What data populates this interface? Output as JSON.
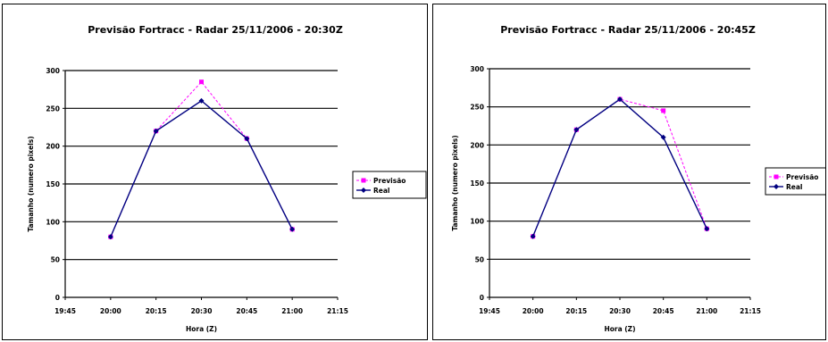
{
  "chart_data": [
    {
      "type": "line",
      "title": "Previsão Fortracc - Radar 25/11/2006 - 20:30Z",
      "xlabel": "Hora (Z)",
      "ylabel": "Tamanho (numero pixels)",
      "x_ticks": [
        "19:45",
        "20:00",
        "20:15",
        "20:30",
        "20:45",
        "21:00",
        "21:15"
      ],
      "y_ticks": [
        0,
        50,
        100,
        150,
        200,
        250,
        300
      ],
      "ylim": [
        0,
        300
      ],
      "grid": true,
      "legend": "right",
      "series": [
        {
          "name": "Previsão",
          "color": "#ff00ff",
          "dashed": true,
          "marker": "square",
          "x": [
            "20:00",
            "20:15",
            "20:30",
            "20:45",
            "21:00"
          ],
          "values": [
            80,
            220,
            285,
            210,
            90
          ]
        },
        {
          "name": "Real",
          "color": "#000080",
          "dashed": false,
          "marker": "diamond",
          "x": [
            "20:00",
            "20:15",
            "20:30",
            "20:45",
            "21:00"
          ],
          "values": [
            80,
            220,
            260,
            210,
            90
          ]
        }
      ]
    },
    {
      "type": "line",
      "title": "Previsão Fortracc - Radar 25/11/2006 - 20:45Z",
      "xlabel": "Hora (Z)",
      "ylabel": "Tamanho (numero pixels)",
      "x_ticks": [
        "19:45",
        "20:00",
        "20:15",
        "20:30",
        "20:45",
        "21:00",
        "21:15"
      ],
      "y_ticks": [
        0,
        50,
        100,
        150,
        200,
        250,
        300
      ],
      "ylim": [
        0,
        300
      ],
      "grid": true,
      "legend": "right",
      "series": [
        {
          "name": "Previsão",
          "color": "#ff00ff",
          "dashed": true,
          "marker": "square",
          "x": [
            "20:00",
            "20:15",
            "20:30",
            "20:45",
            "21:00"
          ],
          "values": [
            80,
            220,
            260,
            245,
            90
          ]
        },
        {
          "name": "Real",
          "color": "#000080",
          "dashed": false,
          "marker": "diamond",
          "x": [
            "20:00",
            "20:15",
            "20:30",
            "20:45",
            "21:00"
          ],
          "values": [
            80,
            220,
            260,
            210,
            90
          ]
        }
      ]
    }
  ]
}
